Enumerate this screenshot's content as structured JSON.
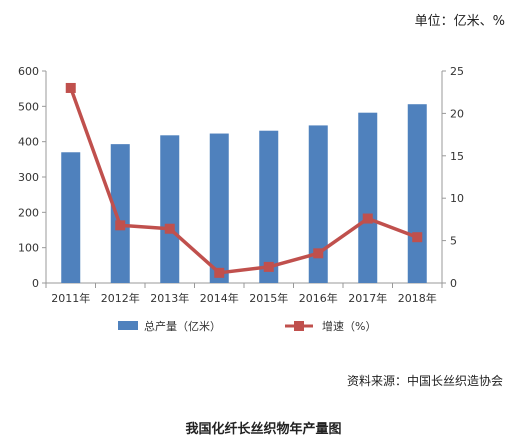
{
  "header": {
    "unit": "单位：亿米、%"
  },
  "footer": {
    "source": "资料来源：中国长丝织造协会",
    "caption": "我国化纤长丝织物年产量图"
  },
  "chart_data": {
    "type": "bar",
    "categories": [
      "2011年",
      "2012年",
      "2013年",
      "2014年",
      "2015年",
      "2016年",
      "2017年",
      "2018年"
    ],
    "series": [
      {
        "name": "总产量（亿米）",
        "type": "bar",
        "axis": "left",
        "color": "#4f81bd",
        "values": [
          370,
          393,
          418,
          423,
          431,
          446,
          482,
          506
        ]
      },
      {
        "name": "增速（%）",
        "type": "line",
        "axis": "right",
        "color": "#c0504d",
        "values": [
          23.0,
          6.8,
          6.4,
          1.2,
          1.9,
          3.5,
          7.6,
          5.4
        ]
      }
    ],
    "y_left": {
      "min": 0,
      "max": 600,
      "ticks": [
        0,
        100,
        200,
        300,
        400,
        500,
        600
      ]
    },
    "y_right": {
      "min": 0,
      "max": 25,
      "ticks": [
        0,
        5,
        10,
        15,
        20,
        25
      ]
    },
    "legend_position": "bottom",
    "grid": false
  }
}
